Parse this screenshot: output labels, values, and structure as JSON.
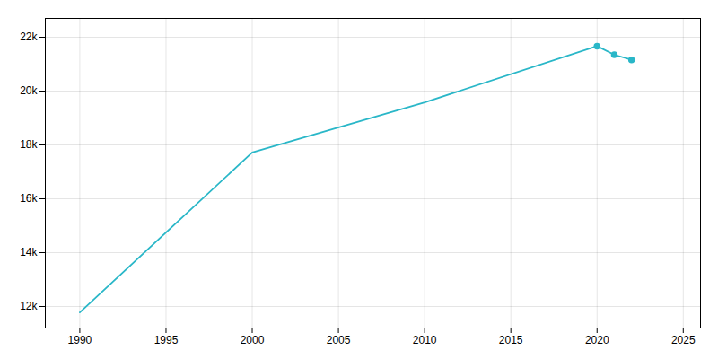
{
  "chart_data": {
    "type": "line",
    "x": [
      1990,
      2000,
      2010,
      2020,
      2021,
      2022
    ],
    "series": [
      {
        "type": "line",
        "color": "#2ab7c8",
        "values": [
          11780,
          17720,
          19582,
          21670,
          21350,
          21160
        ]
      },
      {
        "type": "scatter",
        "marker": "o",
        "color": "#2ab7c8",
        "values": [
          null,
          null,
          null,
          21670,
          21350,
          21160
        ]
      }
    ],
    "xlim": [
      1988,
      2026
    ],
    "xticks": [
      1990,
      1995,
      2000,
      2005,
      2010,
      2015,
      2020,
      2025
    ],
    "ylim": [
      11200,
      22700
    ],
    "yticks": [
      {
        "value": 12000,
        "label": "12k"
      },
      {
        "value": 14000,
        "label": "14k"
      },
      {
        "value": 16000,
        "label": "16k"
      },
      {
        "value": 18000,
        "label": "18k"
      },
      {
        "value": 20000,
        "label": "20k"
      },
      {
        "value": 22000,
        "label": "22k"
      }
    ],
    "grid": true
  }
}
